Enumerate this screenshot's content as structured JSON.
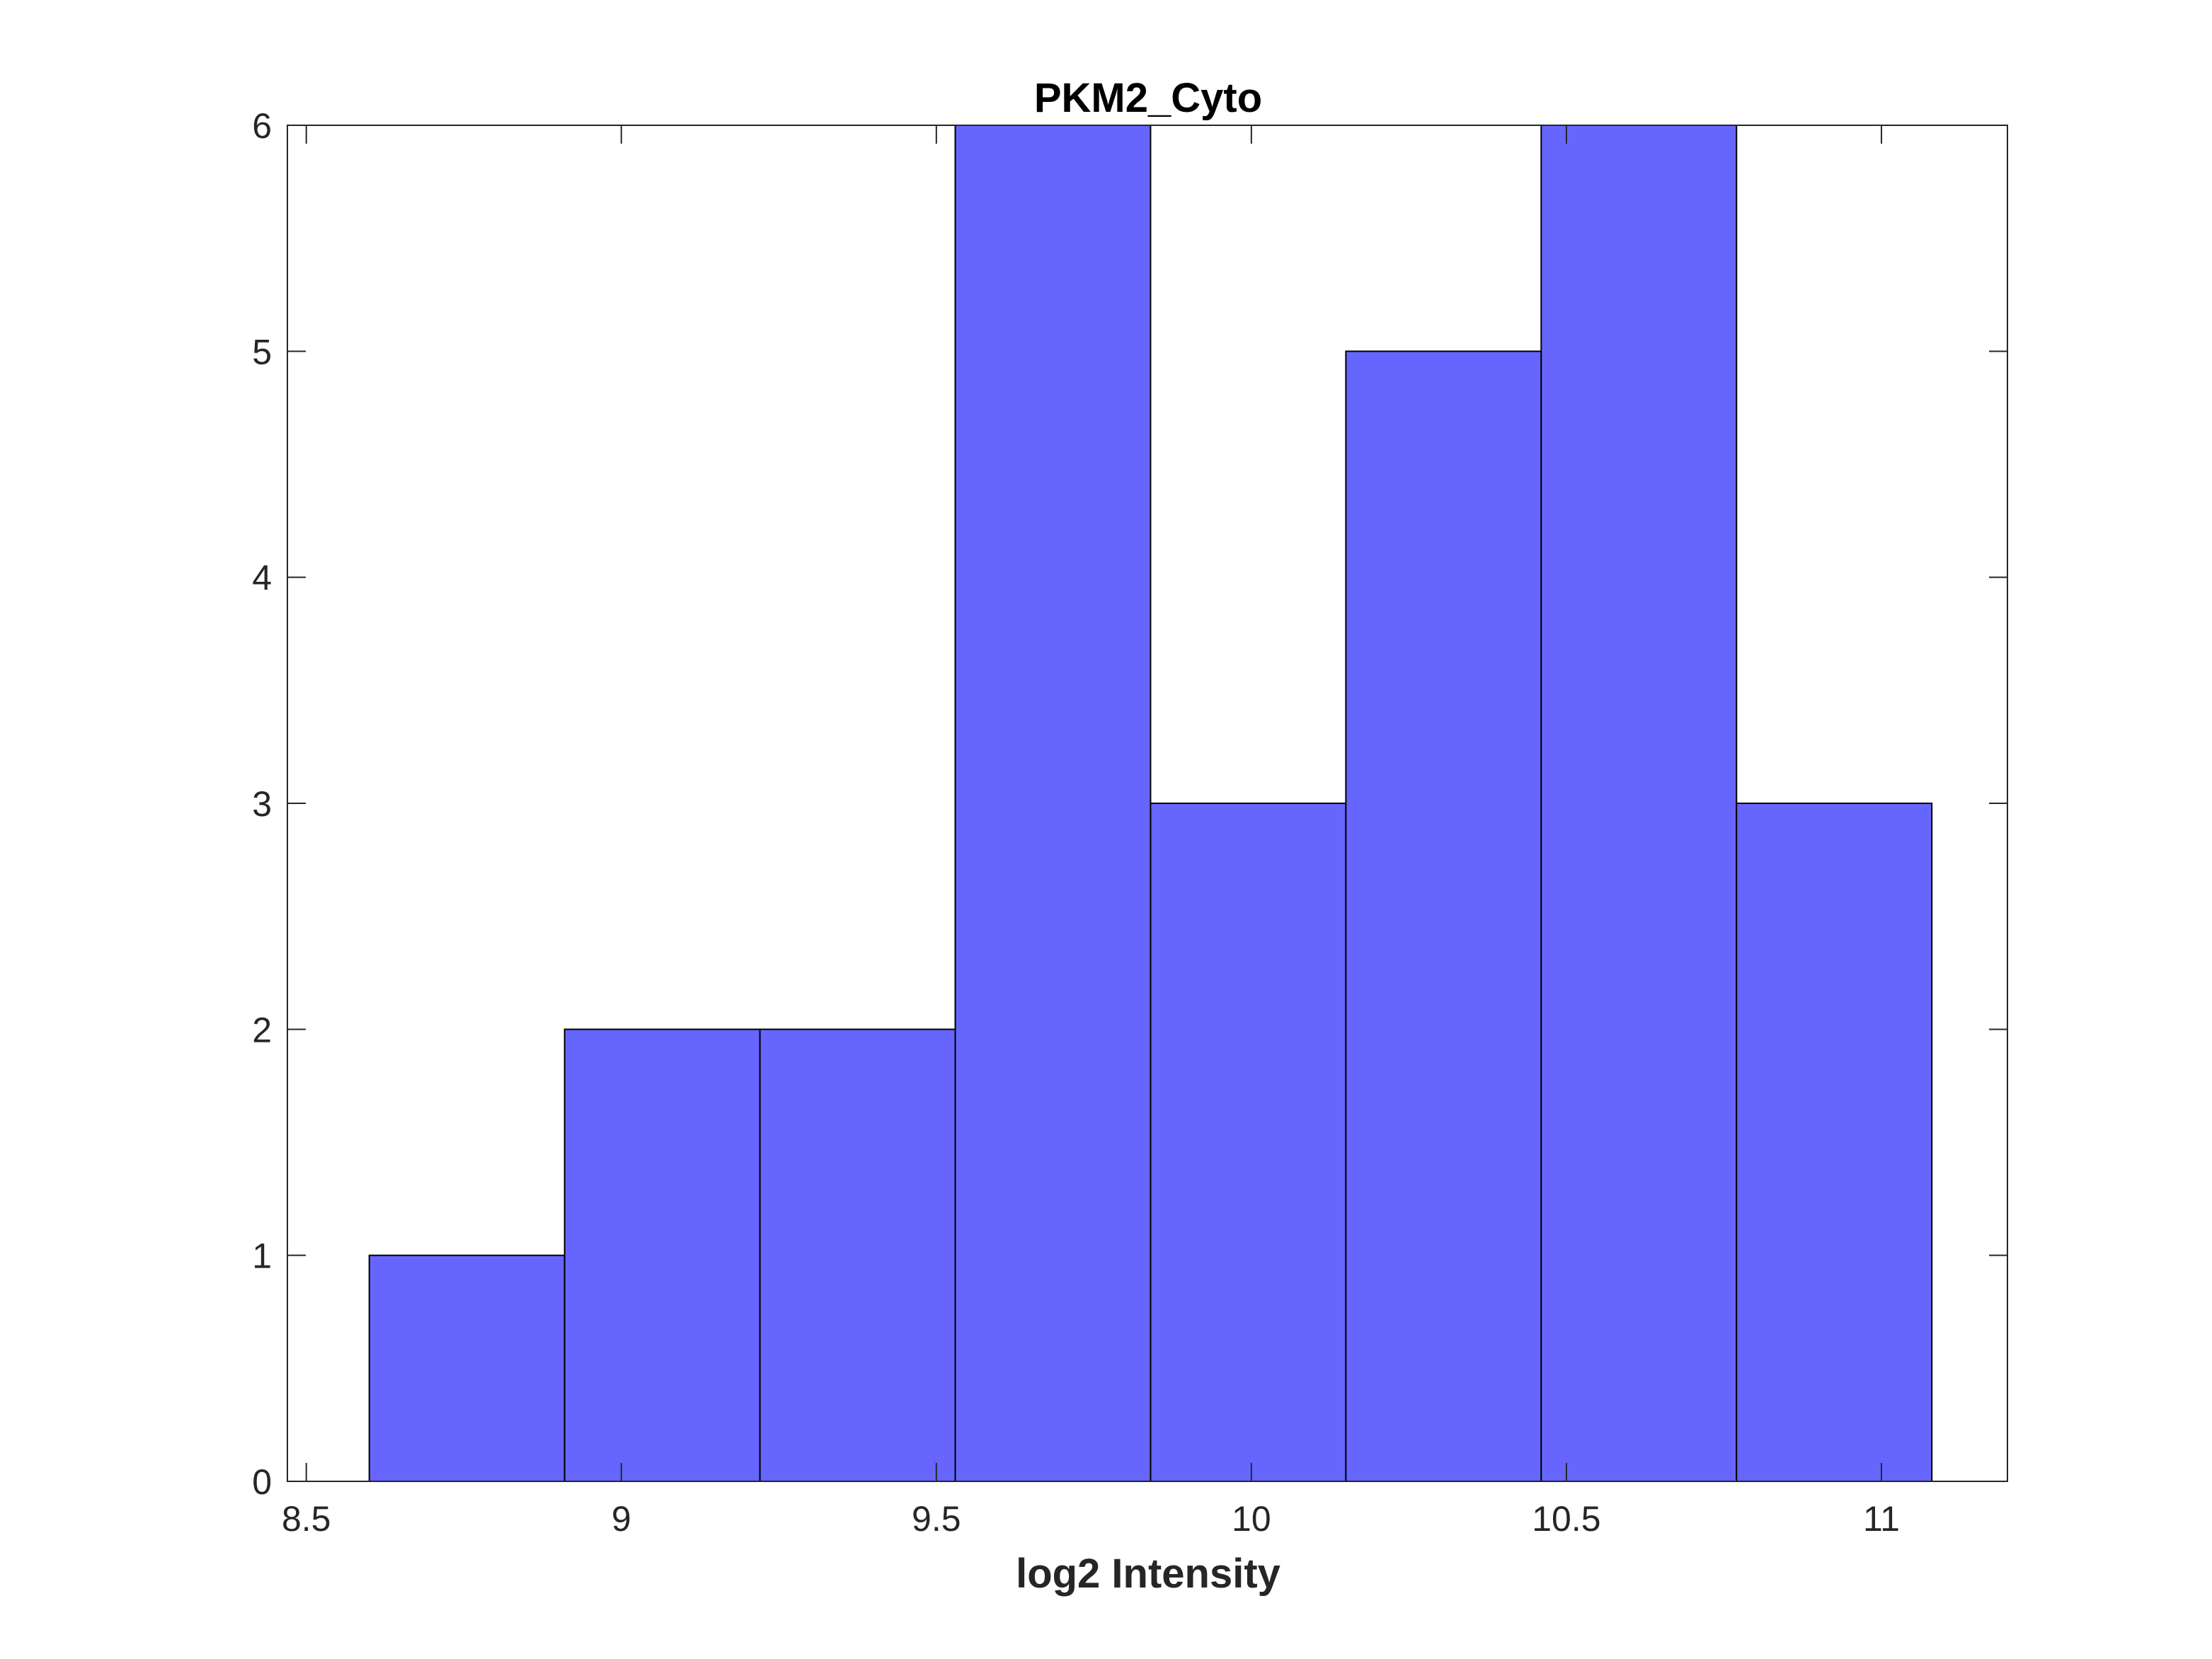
{
  "chart_data": {
    "type": "bar",
    "title": "PKM2_Cyto",
    "xlabel": "log2 Intensity",
    "ylabel": "",
    "xlim": [
      8.47,
      11.2
    ],
    "ylim": [
      0,
      6
    ],
    "xticks": [
      {
        "value": 8.5,
        "label": "8.5"
      },
      {
        "value": 9,
        "label": "9"
      },
      {
        "value": 9.5,
        "label": "9.5"
      },
      {
        "value": 10,
        "label": "10"
      },
      {
        "value": 10.5,
        "label": "10.5"
      },
      {
        "value": 11,
        "label": "11"
      }
    ],
    "yticks": [
      {
        "value": 0,
        "label": "0"
      },
      {
        "value": 1,
        "label": "1"
      },
      {
        "value": 2,
        "label": "2"
      },
      {
        "value": 3,
        "label": "3"
      },
      {
        "value": 4,
        "label": "4"
      },
      {
        "value": 5,
        "label": "5"
      },
      {
        "value": 6,
        "label": "6"
      }
    ],
    "bin_edges": [
      8.6,
      8.91,
      9.22,
      9.53,
      9.84,
      10.15,
      10.46,
      10.77,
      11.08
    ],
    "values": [
      1,
      2,
      2,
      6,
      3,
      5,
      6,
      3
    ],
    "bar_color": "#6666ff",
    "edge_color": "#000000",
    "grid": false,
    "box": true
  }
}
